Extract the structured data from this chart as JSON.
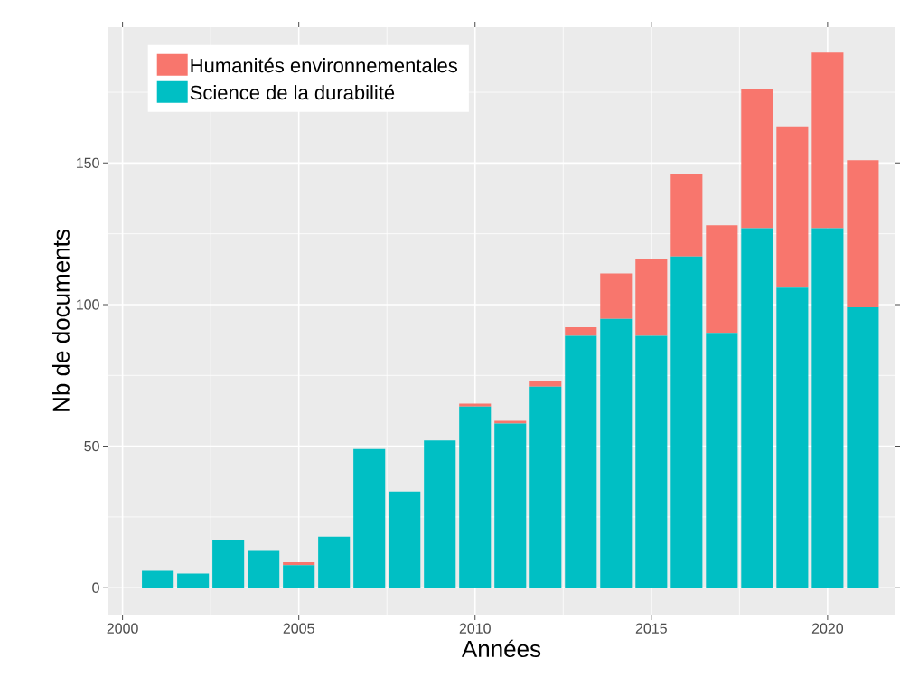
{
  "chart_data": {
    "type": "bar",
    "stacked": true,
    "xlabel": "Années",
    "ylabel": "Nb de documents",
    "x": [
      2001,
      2002,
      2003,
      2004,
      2005,
      2006,
      2007,
      2008,
      2009,
      2010,
      2011,
      2012,
      2013,
      2014,
      2015,
      2016,
      2017,
      2018,
      2019,
      2020,
      2021
    ],
    "series": [
      {
        "name": "Science de la durabilité",
        "color": "#00bfc4",
        "values": [
          6,
          5,
          17,
          13,
          8,
          18,
          49,
          34,
          52,
          64,
          58,
          71,
          89,
          95,
          89,
          117,
          90,
          127,
          106,
          127,
          99
        ]
      },
      {
        "name": "Humanités environnementales",
        "color": "#f8766d",
        "values": [
          0,
          0,
          0,
          0,
          1,
          0,
          0,
          0,
          0,
          1,
          1,
          2,
          3,
          16,
          27,
          29,
          38,
          49,
          57,
          62,
          52
        ]
      }
    ],
    "xlim": [
      1999.6,
      2021.9
    ],
    "ylim": [
      -9.5,
      198
    ],
    "xticks": [
      2000,
      2005,
      2010,
      2015,
      2020
    ],
    "yticks": [
      0,
      50,
      100,
      150
    ],
    "grid": true,
    "legend": "top left"
  }
}
